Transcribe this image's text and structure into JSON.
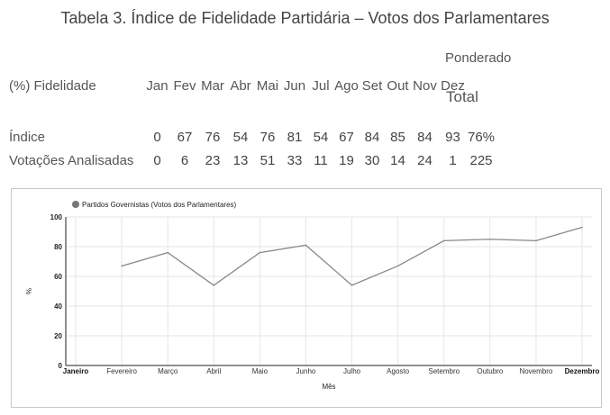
{
  "table": {
    "title": "Tabela 3. Índice de Fidelidade Partidária – Votos dos Parlamentares",
    "ponderado_label": "Ponderado",
    "total_label": "Total",
    "header_label": "(%) Fidelidade",
    "months": [
      "Jan",
      "Fev",
      "Mar",
      "Abr",
      "Mai",
      "Jun",
      "Jul",
      "Ago",
      "Set",
      "Out",
      "Nov",
      "Dez"
    ],
    "rows": [
      {
        "label": "Índice",
        "values": [
          "0",
          "67",
          "76",
          "54",
          "76",
          "81",
          "54",
          "67",
          "84",
          "85",
          "84",
          "93"
        ],
        "total": "76%"
      },
      {
        "label": "Votações Analisadas",
        "values": [
          "0",
          "6",
          "23",
          "13",
          "51",
          "33",
          "11",
          "19",
          "30",
          "14",
          "24",
          "1"
        ],
        "total": "225"
      }
    ]
  },
  "chart_data": {
    "type": "line",
    "title": "",
    "legend": "Partidos Governistas (Votos dos Parlamentares)",
    "legend_position": "top-left",
    "xlabel": "Mês",
    "ylabel": "%",
    "ylim": [
      0,
      100
    ],
    "yticks": [
      0,
      20,
      40,
      60,
      80,
      100
    ],
    "grid": true,
    "categories": [
      "Janeiro",
      "Fevereiro",
      "Março",
      "Abril",
      "Maio",
      "Junho",
      "Julho",
      "Agosto",
      "Setembro",
      "Outubro",
      "Novembro",
      "Dezembro"
    ],
    "series": [
      {
        "name": "Partidos Governistas (Votos dos Parlamentares)",
        "values": [
          null,
          67,
          76,
          54,
          76,
          81,
          54,
          67,
          84,
          85,
          84,
          93
        ]
      }
    ],
    "bold_categories": [
      "Janeiro",
      "Dezembro"
    ],
    "colors": {
      "line": "#888888",
      "legend_marker": "#777777",
      "grid": "#e6e6e6",
      "axis": "#222222"
    }
  }
}
